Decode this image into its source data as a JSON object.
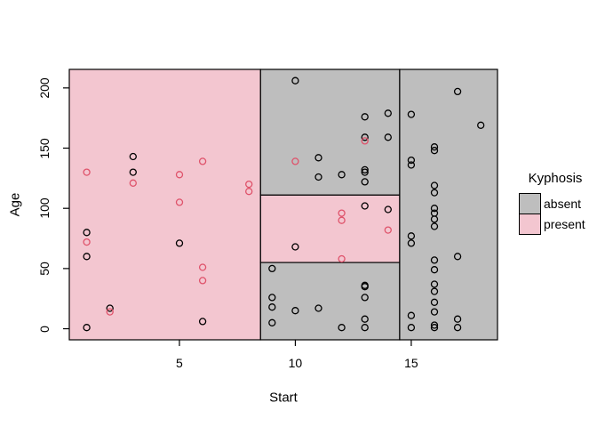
{
  "figure": {
    "xlabel": "Start",
    "ylabel": "Age"
  },
  "legend": {
    "title": "Kyphosis",
    "items": [
      {
        "label": "absent",
        "color": "#BEBEBE"
      },
      {
        "label": "present",
        "color": "#F3C6D0"
      }
    ]
  },
  "chart_data": {
    "type": "scatter",
    "subtype": "classification-tree-partition",
    "title": "",
    "xlabel": "Start",
    "ylabel": "Age",
    "xlim": [
      0.25,
      18.72
    ],
    "ylim": [
      -9.2,
      215.4
    ],
    "x_ticks": [
      5,
      10,
      15
    ],
    "y_ticks": [
      0,
      50,
      100,
      150,
      200
    ],
    "grid": false,
    "legend_position": "right",
    "legend_title": "Kyphosis",
    "region_colors": {
      "absent": "#BEBEBE",
      "present": "#F3C6D0"
    },
    "region_border_color": "#000000",
    "regions": [
      {
        "class": "present",
        "x": [
          0.25,
          8.5
        ],
        "y": [
          -9.2,
          215.4
        ]
      },
      {
        "class": "absent",
        "x": [
          8.5,
          14.5
        ],
        "y": [
          111,
          215.4
        ]
      },
      {
        "class": "present",
        "x": [
          8.5,
          14.5
        ],
        "y": [
          55,
          111
        ]
      },
      {
        "class": "absent",
        "x": [
          8.5,
          14.5
        ],
        "y": [
          -9.2,
          55
        ]
      },
      {
        "class": "absent",
        "x": [
          14.5,
          18.72
        ],
        "y": [
          -9.2,
          215.4
        ]
      }
    ],
    "series": [
      {
        "name": "absent",
        "marker": "open-circle",
        "color": "#000000",
        "points": [
          [
            3,
            143
          ],
          [
            3,
            130
          ],
          [
            1,
            80
          ],
          [
            1,
            60
          ],
          [
            5,
            71
          ],
          [
            2,
            17
          ],
          [
            6,
            6
          ],
          [
            1,
            1
          ],
          [
            10,
            206
          ],
          [
            13,
            176
          ],
          [
            14,
            179
          ],
          [
            13,
            159
          ],
          [
            14,
            159
          ],
          [
            11,
            142
          ],
          [
            11,
            126
          ],
          [
            12,
            128
          ],
          [
            13,
            132
          ],
          [
            13,
            130
          ],
          [
            13,
            122
          ],
          [
            13,
            102
          ],
          [
            14,
            99
          ],
          [
            10,
            68
          ],
          [
            9,
            50
          ],
          [
            9,
            26
          ],
          [
            9,
            18
          ],
          [
            9,
            5
          ],
          [
            10,
            15
          ],
          [
            11,
            17
          ],
          [
            12,
            1
          ],
          [
            13,
            36
          ],
          [
            13,
            35
          ],
          [
            13,
            26
          ],
          [
            13,
            8
          ],
          [
            13,
            1
          ],
          [
            17,
            197
          ],
          [
            15,
            178
          ],
          [
            18,
            169
          ],
          [
            16,
            151
          ],
          [
            16,
            148
          ],
          [
            15,
            140
          ],
          [
            15,
            136
          ],
          [
            16,
            119
          ],
          [
            16,
            113
          ],
          [
            16,
            100
          ],
          [
            16,
            96
          ],
          [
            16,
            91
          ],
          [
            16,
            85
          ],
          [
            15,
            77
          ],
          [
            15,
            71
          ],
          [
            17,
            60
          ],
          [
            16,
            57
          ],
          [
            16,
            49
          ],
          [
            16,
            37
          ],
          [
            16,
            31
          ],
          [
            16,
            22
          ],
          [
            16,
            14
          ],
          [
            15,
            11
          ],
          [
            15,
            1
          ],
          [
            16,
            3
          ],
          [
            16,
            1
          ],
          [
            17,
            8
          ],
          [
            17,
            1
          ]
        ]
      },
      {
        "name": "present",
        "marker": "open-circle",
        "color": "#DF536B",
        "points": [
          [
            1,
            130
          ],
          [
            3,
            121
          ],
          [
            5,
            128
          ],
          [
            6,
            139
          ],
          [
            8,
            120
          ],
          [
            8,
            114
          ],
          [
            5,
            105
          ],
          [
            1,
            72
          ],
          [
            6,
            51
          ],
          [
            6,
            40
          ],
          [
            2,
            14
          ],
          [
            10,
            139
          ],
          [
            13,
            156
          ],
          [
            12,
            96
          ],
          [
            12,
            90
          ],
          [
            14,
            82
          ],
          [
            12,
            58
          ]
        ]
      }
    ]
  }
}
